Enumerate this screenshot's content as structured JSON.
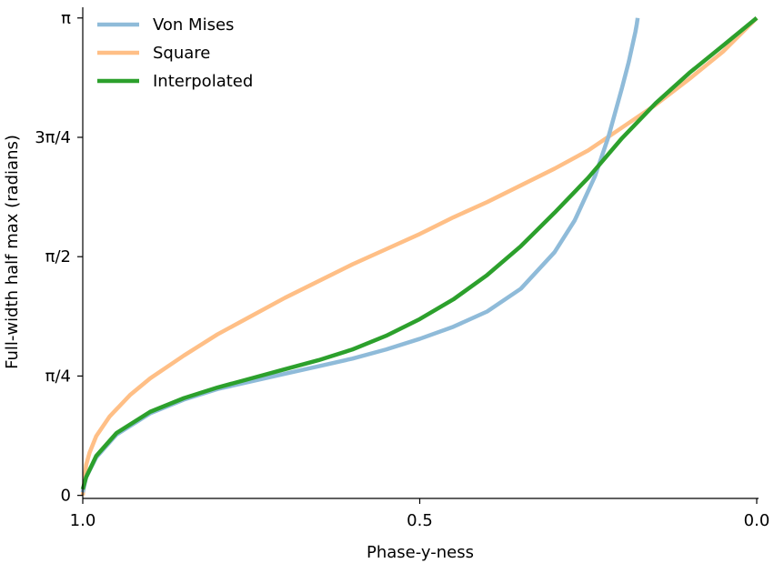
{
  "chart_data": {
    "type": "line",
    "xlabel": "Phase-y-ness",
    "ylabel": "Full-width half max (radians)",
    "xlim": [
      1.0,
      0.0
    ],
    "ylim": [
      -0.02,
      3.2
    ],
    "x_reversed": true,
    "grid": false,
    "legend_position": "top-left",
    "x_ticks": [
      {
        "value": 1.0,
        "label": "1.0"
      },
      {
        "value": 0.5,
        "label": "0.5"
      },
      {
        "value": 0.0,
        "label": "0.0"
      }
    ],
    "y_ticks": [
      {
        "value": 0,
        "label": "0"
      },
      {
        "value": 0.7854,
        "label": "π/4"
      },
      {
        "value": 1.5708,
        "label": "π/2"
      },
      {
        "value": 2.3562,
        "label": "3π/4"
      },
      {
        "value": 3.1416,
        "label": "π"
      }
    ],
    "series": [
      {
        "name": "Von Mises",
        "color": "#8fbbd9",
        "x": [
          1.0,
          0.995,
          0.98,
          0.95,
          0.9,
          0.85,
          0.8,
          0.75,
          0.7,
          0.65,
          0.6,
          0.55,
          0.5,
          0.45,
          0.4,
          0.35,
          0.3,
          0.27,
          0.24,
          0.22,
          0.2,
          0.19,
          0.185,
          0.18,
          0.178,
          0.177,
          0.1767
        ],
        "y": [
          0.02,
          0.12,
          0.25,
          0.4,
          0.54,
          0.63,
          0.7,
          0.75,
          0.8,
          0.85,
          0.9,
          0.96,
          1.03,
          1.11,
          1.21,
          1.36,
          1.6,
          1.81,
          2.1,
          2.36,
          2.68,
          2.85,
          2.95,
          3.05,
          3.1,
          3.13,
          3.1416
        ]
      },
      {
        "name": "Square",
        "color": "#ffbf86",
        "x": [
          1.0,
          0.995,
          0.99,
          0.98,
          0.96,
          0.93,
          0.9,
          0.85,
          0.8,
          0.75,
          0.7,
          0.65,
          0.6,
          0.55,
          0.5,
          0.45,
          0.4,
          0.35,
          0.3,
          0.25,
          0.2,
          0.15,
          0.1,
          0.05,
          0.0
        ],
        "y": [
          0.0,
          0.2,
          0.28,
          0.39,
          0.52,
          0.66,
          0.77,
          0.92,
          1.06,
          1.18,
          1.3,
          1.41,
          1.52,
          1.62,
          1.72,
          1.83,
          1.93,
          2.04,
          2.15,
          2.27,
          2.42,
          2.57,
          2.74,
          2.92,
          3.1416
        ]
      },
      {
        "name": "Interpolated",
        "color": "#2ca02c",
        "x": [
          1.0,
          0.995,
          0.98,
          0.95,
          0.9,
          0.85,
          0.8,
          0.75,
          0.7,
          0.65,
          0.6,
          0.55,
          0.5,
          0.45,
          0.4,
          0.35,
          0.3,
          0.25,
          0.2,
          0.15,
          0.1,
          0.05,
          0.0
        ],
        "y": [
          0.04,
          0.12,
          0.26,
          0.41,
          0.55,
          0.64,
          0.71,
          0.77,
          0.83,
          0.89,
          0.96,
          1.05,
          1.16,
          1.29,
          1.45,
          1.64,
          1.86,
          2.09,
          2.35,
          2.58,
          2.78,
          2.96,
          3.1416
        ]
      }
    ]
  }
}
